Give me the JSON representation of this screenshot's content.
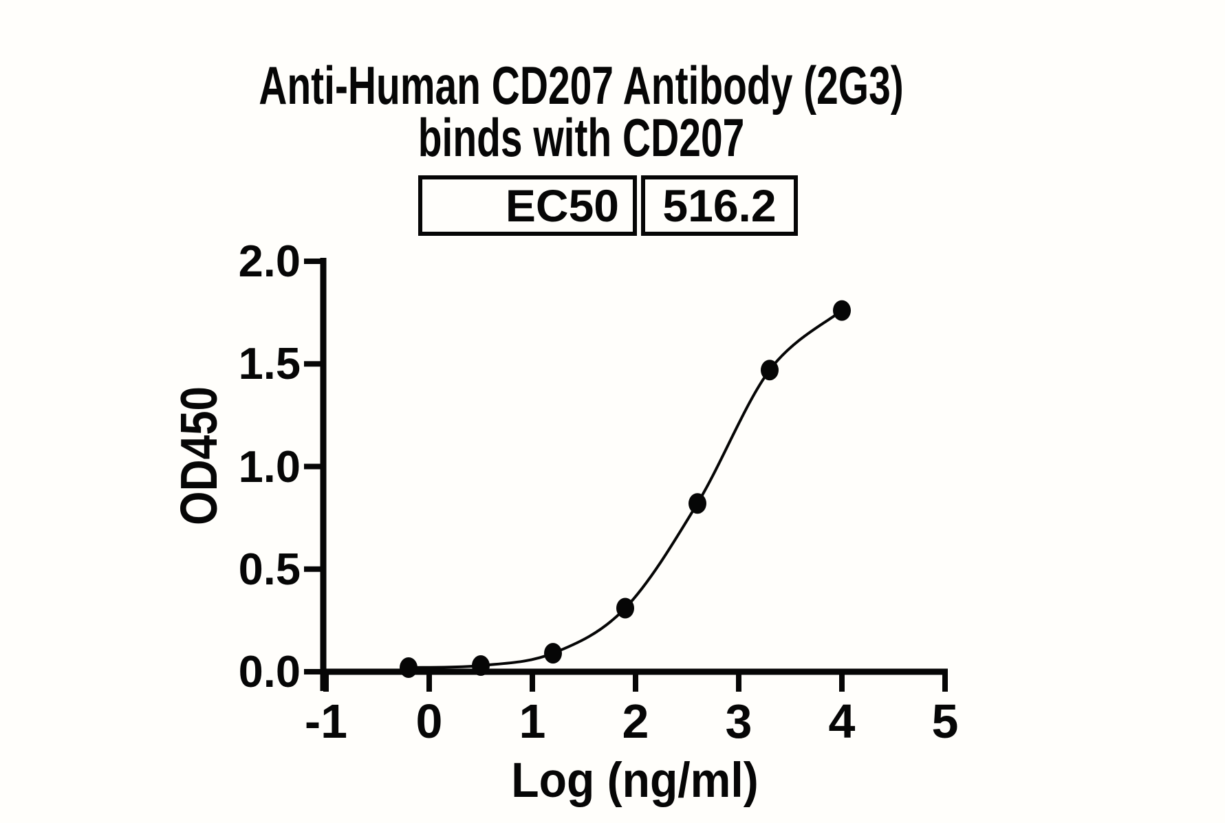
{
  "title": {
    "line1": "Anti-Human CD207 Antibody (2G3)",
    "line2": "binds with CD207"
  },
  "ec50_table": {
    "label": "EC50",
    "value": "516.2"
  },
  "chart_data": {
    "type": "scatter",
    "title": "Anti-Human CD207 Antibody (2G3) binds with CD207",
    "xlabel": "Log (ng/ml)",
    "ylabel": "OD450",
    "xlim": [
      -1,
      5
    ],
    "ylim": [
      0.0,
      2.0
    ],
    "xtick_values": [
      -1,
      0,
      1,
      2,
      3,
      4,
      5
    ],
    "xtick_labels": [
      "-1",
      "0",
      "1",
      "2",
      "3",
      "4",
      "5"
    ],
    "ytick_values": [
      0,
      0.5,
      1,
      1.5,
      2
    ],
    "ytick_labels": [
      "0.0",
      "0.5",
      "1.0",
      "1.5",
      "2.0"
    ],
    "grid": false,
    "legend_position": "none",
    "line": {
      "color": "#060606",
      "style": "smooth-sigmoid-fit"
    },
    "marker": {
      "shape": "filled-circle",
      "color": "#060606"
    },
    "series": [
      {
        "name": "Anti-Human CD207 Antibody (2G3)",
        "x": [
          -0.2,
          0.5,
          1.2,
          1.9,
          2.6,
          3.3,
          4.0
        ],
        "y": [
          0.02,
          0.03,
          0.09,
          0.31,
          0.82,
          1.47,
          1.76
        ]
      }
    ],
    "annotations": {
      "EC50": "516.2"
    }
  }
}
